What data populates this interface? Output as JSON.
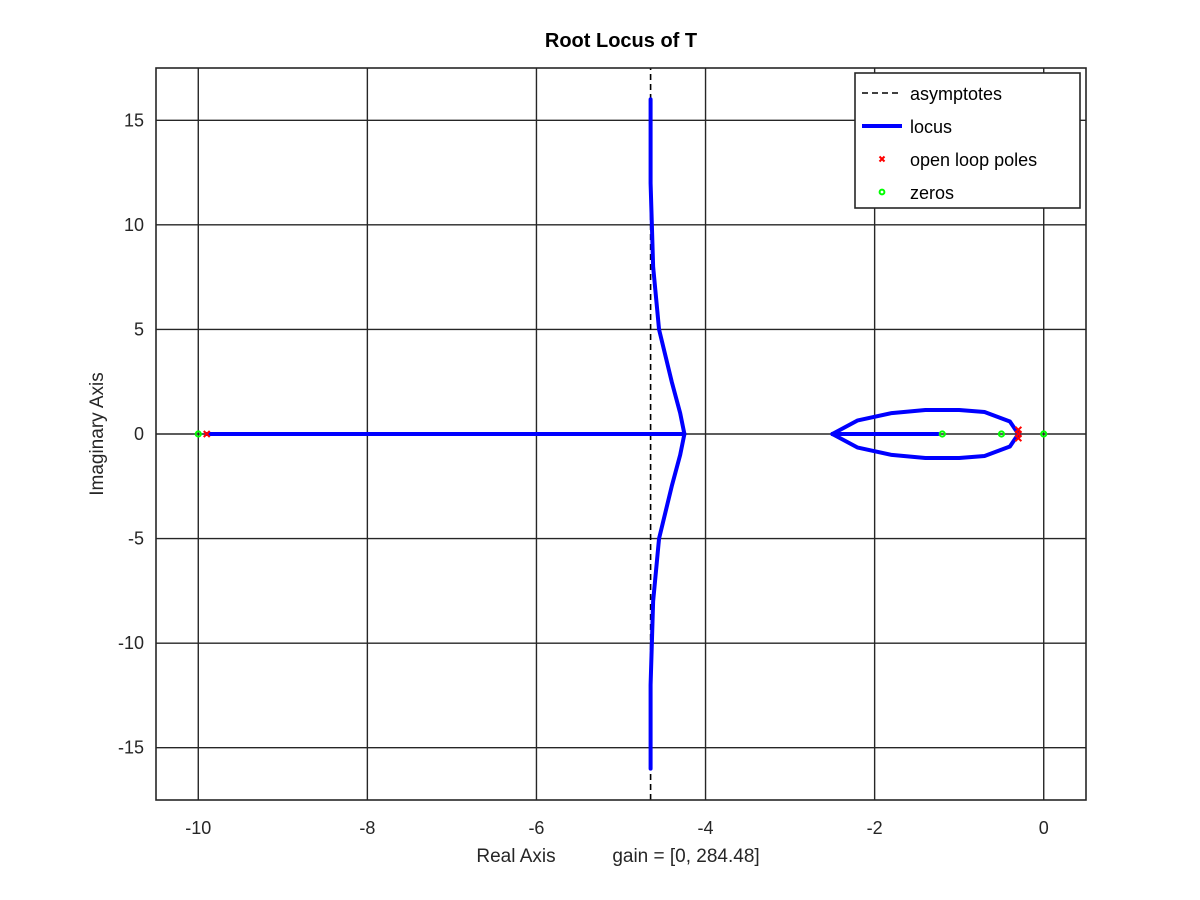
{
  "chart_data": {
    "type": "line",
    "title": "Root Locus of T",
    "xlabel": "Real Axis",
    "gain_label": "gain = [0, 284.48]",
    "ylabel": "Imaginary Axis",
    "xlim": [
      -10.5,
      0.5
    ],
    "ylim": [
      -17.5,
      17.5
    ],
    "xticks": [
      -10,
      -8,
      -6,
      -4,
      -2,
      0
    ],
    "yticks": [
      -15,
      -10,
      -5,
      0,
      5,
      10,
      15
    ],
    "grid": true,
    "legend_position": "top-right",
    "colors": {
      "asymptotes": "#000000",
      "locus": "#0000ff",
      "poles": "#ff0000",
      "zeros": "#00ff00"
    },
    "series": [
      {
        "name": "asymptotes",
        "style": "dashed",
        "x": [
          -4.65,
          -4.65
        ],
        "y": [
          -17.5,
          17.5
        ]
      },
      {
        "name": "locus",
        "style": "solid",
        "segments": [
          {
            "x": [
              -9.9,
              -4.25
            ],
            "y": [
              0,
              0
            ]
          },
          {
            "x": [
              -2.5,
              -1.25
            ],
            "y": [
              0,
              0
            ]
          },
          {
            "x": [
              -4.25,
              -4.3,
              -4.4,
              -4.55,
              -4.62,
              -4.65,
              -4.65
            ],
            "y": [
              0,
              1.0,
              2.5,
              5.0,
              8.0,
              12.0,
              16.0
            ]
          },
          {
            "x": [
              -4.25,
              -4.3,
              -4.4,
              -4.55,
              -4.62,
              -4.65,
              -4.65
            ],
            "y": [
              0,
              -1.0,
              -2.5,
              -5.0,
              -8.0,
              -12.0,
              -16.0
            ]
          },
          {
            "x": [
              -0.3,
              -0.4,
              -0.7,
              -1.0,
              -1.4,
              -1.8,
              -2.2,
              -2.5
            ],
            "y": [
              0,
              0.6,
              1.05,
              1.15,
              1.15,
              1.0,
              0.65,
              0
            ]
          },
          {
            "x": [
              -0.3,
              -0.4,
              -0.7,
              -1.0,
              -1.4,
              -1.8,
              -2.2,
              -2.5
            ],
            "y": [
              0,
              -0.6,
              -1.05,
              -1.15,
              -1.15,
              -1.0,
              -0.65,
              0
            ]
          }
        ]
      },
      {
        "name": "open loop poles",
        "marker": "x",
        "points": [
          [
            -9.9,
            0
          ],
          [
            -0.3,
            0
          ],
          [
            -0.3,
            0.2
          ],
          [
            -0.3,
            -0.2
          ]
        ]
      },
      {
        "name": "zeros",
        "marker": "o",
        "points": [
          [
            -10,
            0
          ],
          [
            -1.2,
            0
          ],
          [
            -0.5,
            0
          ],
          [
            0,
            0
          ]
        ]
      }
    ],
    "legend": [
      "asymptotes",
      "locus",
      "open loop poles",
      "zeros"
    ]
  }
}
